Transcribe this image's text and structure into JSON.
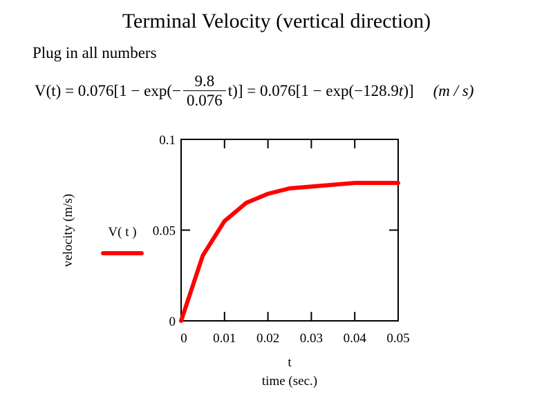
{
  "header": {
    "title": "Terminal Velocity (vertical direction)",
    "subtitle": "Plug in all numbers"
  },
  "equation": {
    "lhs": "V(t) = 0.076[1 − exp(−",
    "frac_num": "9.8",
    "frac_den": "0.076",
    "mid": " t)] = 0.076[1 − exp(−128.9",
    "t_var": "t",
    "rhs": ")]",
    "units": "(m / s)"
  },
  "colors": {
    "series": "#ff0000",
    "frame": "#000000",
    "background": "#ffffff"
  },
  "chart_data": {
    "type": "line",
    "title": "",
    "xlabel_var": "t",
    "xlabel": "time (sec.)",
    "ylabel": "velocity (m/s)",
    "xlim": [
      0,
      0.05
    ],
    "ylim": [
      0,
      0.1
    ],
    "x_ticks": [
      0,
      0.01,
      0.02,
      0.03,
      0.04,
      0.05
    ],
    "x_tick_labels": [
      "0",
      "0.01",
      "0.02",
      "0.03",
      "0.04",
      "0.05"
    ],
    "y_ticks": [
      0,
      0.05,
      0.1
    ],
    "y_tick_labels": [
      "0",
      "0.05",
      "0.1"
    ],
    "grid": false,
    "legend_position": "left",
    "series": [
      {
        "name": "V( t )",
        "color": "#ff0000",
        "x": [
          0,
          0.005,
          0.01,
          0.015,
          0.02,
          0.025,
          0.03,
          0.035,
          0.04,
          0.045,
          0.05
        ],
        "y": [
          0,
          0.036,
          0.055,
          0.065,
          0.07,
          0.073,
          0.074,
          0.075,
          0.076,
          0.076,
          0.076
        ]
      }
    ]
  }
}
